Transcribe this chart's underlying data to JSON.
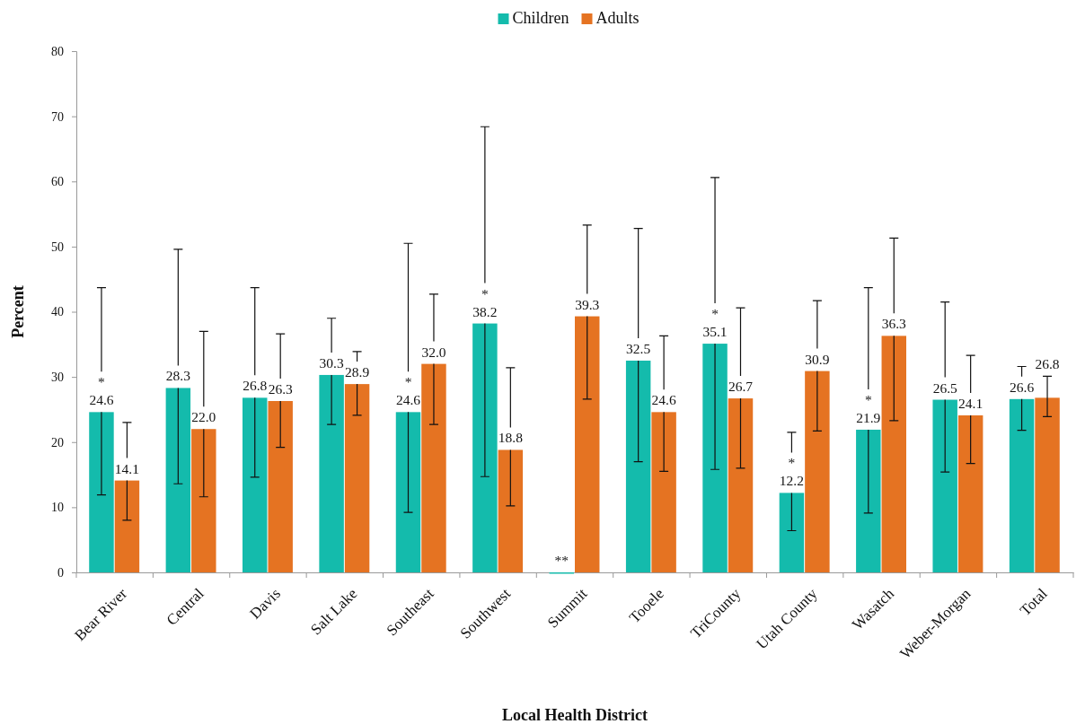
{
  "chart_data": {
    "type": "bar",
    "xlabel": "Local Health District",
    "ylabel": "Percent",
    "categories": [
      "Bear River",
      "Central",
      "Davis",
      "Salt Lake",
      "Southeast",
      "Southwest",
      "Summit",
      "Tooele",
      "TriCounty",
      "Utah County",
      "Wasatch",
      "Weber-Morgan",
      "Total"
    ],
    "series": [
      {
        "name": "Children",
        "color": "#14bbac",
        "values": [
          24.6,
          28.3,
          26.8,
          30.3,
          24.6,
          38.2,
          0,
          32.5,
          35.1,
          12.2,
          21.9,
          26.5,
          26.6
        ],
        "errors": [
          [
            11.9,
            43.7
          ],
          [
            13.6,
            49.6
          ],
          [
            14.6,
            43.7
          ],
          [
            22.7,
            39.0
          ],
          [
            9.2,
            50.5
          ],
          [
            14.7,
            68.4
          ],
          null,
          [
            17.0,
            52.8
          ],
          [
            15.8,
            60.6
          ],
          [
            6.4,
            21.5
          ],
          [
            9.1,
            43.7
          ],
          [
            15.4,
            41.5
          ],
          [
            21.8,
            31.6
          ]
        ],
        "value_labels": [
          "*\n24.6",
          "28.3",
          "26.8",
          "30.3",
          "*\n24.6",
          "*\n38.2",
          "**",
          "32.5",
          "*\n35.1",
          "*\n12.2",
          "*\n21.9",
          "26.5",
          "26.6"
        ]
      },
      {
        "name": "Adults",
        "color": "#e57322",
        "values": [
          14.1,
          22.0,
          26.3,
          28.9,
          32.0,
          18.8,
          39.3,
          24.6,
          26.7,
          30.9,
          36.3,
          24.1,
          26.8
        ],
        "errors": [
          [
            8.0,
            23.0
          ],
          [
            11.6,
            37.0
          ],
          [
            19.2,
            36.6
          ],
          [
            24.1,
            33.9
          ],
          [
            22.7,
            42.7
          ],
          [
            10.2,
            31.4
          ],
          [
            26.6,
            53.3
          ],
          [
            15.5,
            36.3
          ],
          [
            16.0,
            40.6
          ],
          [
            21.7,
            41.7
          ],
          [
            23.3,
            51.3
          ],
          [
            16.7,
            33.3
          ],
          [
            23.9,
            30.1
          ]
        ],
        "value_labels": [
          "14.1",
          "22.0",
          "26.3",
          "28.9",
          "32.0",
          "18.8",
          "39.3",
          "24.6",
          "26.7",
          "30.9",
          "36.3",
          "24.1",
          "26.8"
        ]
      }
    ],
    "ylim": [
      0,
      80
    ],
    "yticks": [
      0,
      10,
      20,
      30,
      40,
      50,
      60,
      70,
      80
    ],
    "grid": false,
    "legend": "top"
  }
}
